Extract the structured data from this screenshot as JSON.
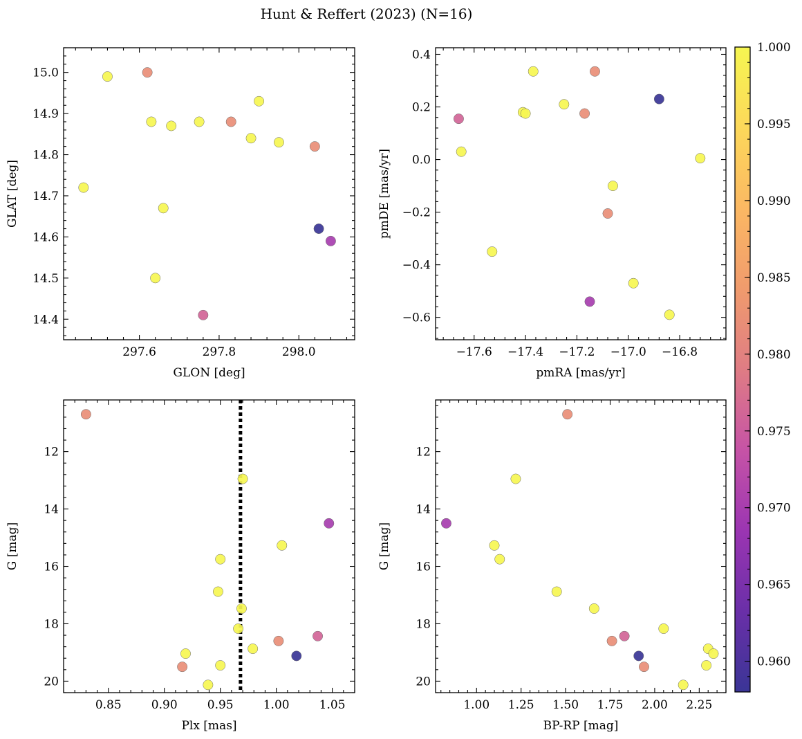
{
  "figure": {
    "title": "Hunt & Reffert (2023) (N=16)"
  },
  "colorbar": {
    "range": [
      0.958,
      1.0
    ],
    "ticks": [
      0.96,
      0.965,
      0.97,
      0.975,
      0.98,
      0.985,
      0.99,
      0.995,
      1.0
    ],
    "tick_labels": [
      "0.960",
      "0.965",
      "0.970",
      "0.975",
      "0.980",
      "0.985",
      "0.990",
      "0.995",
      "1.000"
    ],
    "minor_step": 0.001,
    "colors": [
      "#3a3596",
      "#6a2fa8",
      "#9b35b2",
      "#c653a6",
      "#df7c84",
      "#f09b6d",
      "#fbb863",
      "#fcd85a",
      "#f6f651"
    ]
  },
  "chart_data": [
    {
      "type": "scatter",
      "name": "glon-glat",
      "xlabel": "GLON [deg]",
      "ylabel": "GLAT [deg]",
      "xlim": [
        297.41,
        298.14
      ],
      "ylim": [
        14.35,
        15.06
      ],
      "yinvert": false,
      "xticks": [
        297.6,
        297.8,
        298.0
      ],
      "xtick_labels": [
        "297.6",
        "297.8",
        "298.0"
      ],
      "yticks": [
        14.4,
        14.5,
        14.6,
        14.7,
        14.8,
        14.9,
        15.0
      ],
      "ytick_labels": [
        "14.4",
        "14.5",
        "14.6",
        "14.7",
        "14.8",
        "14.9",
        "15.0"
      ],
      "xminor": 0.04,
      "yminor": 0.02,
      "points": [
        {
          "x": 297.52,
          "y": 14.99,
          "c": 1.0
        },
        {
          "x": 297.62,
          "y": 15.0,
          "c": 0.982
        },
        {
          "x": 297.63,
          "y": 14.88,
          "c": 1.0
        },
        {
          "x": 297.68,
          "y": 14.87,
          "c": 1.0
        },
        {
          "x": 297.75,
          "y": 14.88,
          "c": 1.0
        },
        {
          "x": 297.83,
          "y": 14.88,
          "c": 0.982
        },
        {
          "x": 297.9,
          "y": 14.93,
          "c": 1.0
        },
        {
          "x": 297.88,
          "y": 14.84,
          "c": 1.0
        },
        {
          "x": 297.95,
          "y": 14.83,
          "c": 1.0
        },
        {
          "x": 298.04,
          "y": 14.82,
          "c": 0.982
        },
        {
          "x": 297.46,
          "y": 14.72,
          "c": 1.0
        },
        {
          "x": 297.66,
          "y": 14.67,
          "c": 1.0
        },
        {
          "x": 298.05,
          "y": 14.62,
          "c": 0.958
        },
        {
          "x": 298.08,
          "y": 14.59,
          "c": 0.97
        },
        {
          "x": 297.64,
          "y": 14.5,
          "c": 1.0
        },
        {
          "x": 297.76,
          "y": 14.41,
          "c": 0.976
        }
      ]
    },
    {
      "type": "scatter",
      "name": "pmra-pmde",
      "xlabel": "pmRA [mas/yr]",
      "ylabel": "pmDE [mas/yr]",
      "xlim": [
        -17.75,
        -16.62
      ],
      "ylim": [
        -0.685,
        0.425
      ],
      "yinvert": false,
      "xticks": [
        -17.6,
        -17.4,
        -17.2,
        -17.0,
        -16.8
      ],
      "xtick_labels": [
        "−17.6",
        "−17.4",
        "−17.2",
        "−17.0",
        "−16.8"
      ],
      "yticks": [
        -0.6,
        -0.4,
        -0.2,
        0.0,
        0.2,
        0.4
      ],
      "ytick_labels": [
        "−0.6",
        "−0.4",
        "−0.2",
        "0.0",
        "0.2",
        "0.4"
      ],
      "xminor": 0.04,
      "yminor": 0.04,
      "points": [
        {
          "x": -17.37,
          "y": 0.335,
          "c": 1.0
        },
        {
          "x": -17.13,
          "y": 0.335,
          "c": 0.982
        },
        {
          "x": -16.88,
          "y": 0.23,
          "c": 0.958
        },
        {
          "x": -17.25,
          "y": 0.21,
          "c": 1.0
        },
        {
          "x": -17.41,
          "y": 0.18,
          "c": 1.0
        },
        {
          "x": -17.4,
          "y": 0.175,
          "c": 1.0
        },
        {
          "x": -17.17,
          "y": 0.175,
          "c": 0.982
        },
        {
          "x": -17.66,
          "y": 0.155,
          "c": 0.976
        },
        {
          "x": -17.65,
          "y": 0.03,
          "c": 1.0
        },
        {
          "x": -16.72,
          "y": 0.005,
          "c": 1.0
        },
        {
          "x": -17.06,
          "y": -0.1,
          "c": 1.0
        },
        {
          "x": -17.08,
          "y": -0.205,
          "c": 0.982
        },
        {
          "x": -17.53,
          "y": -0.35,
          "c": 1.0
        },
        {
          "x": -16.98,
          "y": -0.47,
          "c": 1.0
        },
        {
          "x": -17.15,
          "y": -0.54,
          "c": 0.97
        },
        {
          "x": -16.84,
          "y": -0.59,
          "c": 1.0
        }
      ]
    },
    {
      "type": "scatter",
      "name": "plx-g",
      "xlabel": "Plx [mas]",
      "ylabel": "G [mag]",
      "xlim": [
        0.81,
        1.07
      ],
      "ylim": [
        10.2,
        20.4
      ],
      "yinvert": true,
      "xticks": [
        0.85,
        0.9,
        0.95,
        1.0,
        1.05
      ],
      "xtick_labels": [
        "0.85",
        "0.90",
        "0.95",
        "1.00",
        "1.05"
      ],
      "yticks": [
        12,
        14,
        16,
        18,
        20
      ],
      "ytick_labels": [
        "12",
        "14",
        "16",
        "18",
        "20"
      ],
      "xminor": 0.01,
      "yminor": 0.4,
      "vline": 0.968,
      "points": [
        {
          "x": 0.83,
          "y": 10.7,
          "c": 0.982
        },
        {
          "x": 0.97,
          "y": 12.95,
          "c": 1.0
        },
        {
          "x": 1.047,
          "y": 14.5,
          "c": 0.97
        },
        {
          "x": 1.005,
          "y": 15.27,
          "c": 1.0
        },
        {
          "x": 0.95,
          "y": 15.75,
          "c": 1.0
        },
        {
          "x": 0.948,
          "y": 16.88,
          "c": 1.0
        },
        {
          "x": 0.969,
          "y": 17.47,
          "c": 1.0
        },
        {
          "x": 0.966,
          "y": 18.17,
          "c": 1.0
        },
        {
          "x": 1.037,
          "y": 18.43,
          "c": 0.976
        },
        {
          "x": 1.002,
          "y": 18.6,
          "c": 0.982
        },
        {
          "x": 0.979,
          "y": 18.87,
          "c": 1.0
        },
        {
          "x": 0.919,
          "y": 19.04,
          "c": 1.0
        },
        {
          "x": 1.018,
          "y": 19.12,
          "c": 0.958
        },
        {
          "x": 0.95,
          "y": 19.45,
          "c": 1.0
        },
        {
          "x": 0.916,
          "y": 19.5,
          "c": 0.982
        },
        {
          "x": 0.939,
          "y": 20.13,
          "c": 1.0
        }
      ]
    },
    {
      "type": "scatter",
      "name": "bprp-g",
      "xlabel": "BP-RP [mag]",
      "ylabel": "G [mag]",
      "xlim": [
        0.77,
        2.4
      ],
      "ylim": [
        10.2,
        20.4
      ],
      "yinvert": true,
      "xticks": [
        1.0,
        1.25,
        1.5,
        1.75,
        2.0,
        2.25
      ],
      "xtick_labels": [
        "1.00",
        "1.25",
        "1.50",
        "1.75",
        "2.00",
        "2.25"
      ],
      "yticks": [
        12,
        14,
        16,
        18,
        20
      ],
      "ytick_labels": [
        "12",
        "14",
        "16",
        "18",
        "20"
      ],
      "xminor": 0.05,
      "yminor": 0.4,
      "points": [
        {
          "x": 1.51,
          "y": 10.7,
          "c": 0.982
        },
        {
          "x": 1.22,
          "y": 12.95,
          "c": 1.0
        },
        {
          "x": 0.83,
          "y": 14.5,
          "c": 0.97
        },
        {
          "x": 1.1,
          "y": 15.27,
          "c": 1.0
        },
        {
          "x": 1.13,
          "y": 15.75,
          "c": 1.0
        },
        {
          "x": 1.45,
          "y": 16.88,
          "c": 1.0
        },
        {
          "x": 1.66,
          "y": 17.47,
          "c": 1.0
        },
        {
          "x": 2.05,
          "y": 18.17,
          "c": 1.0
        },
        {
          "x": 1.83,
          "y": 18.43,
          "c": 0.976
        },
        {
          "x": 1.76,
          "y": 18.6,
          "c": 0.982
        },
        {
          "x": 2.3,
          "y": 18.87,
          "c": 1.0
        },
        {
          "x": 2.33,
          "y": 19.04,
          "c": 1.0
        },
        {
          "x": 1.91,
          "y": 19.12,
          "c": 0.958
        },
        {
          "x": 2.29,
          "y": 19.45,
          "c": 1.0
        },
        {
          "x": 1.94,
          "y": 19.5,
          "c": 0.982
        },
        {
          "x": 2.16,
          "y": 20.13,
          "c": 1.0
        }
      ]
    }
  ]
}
